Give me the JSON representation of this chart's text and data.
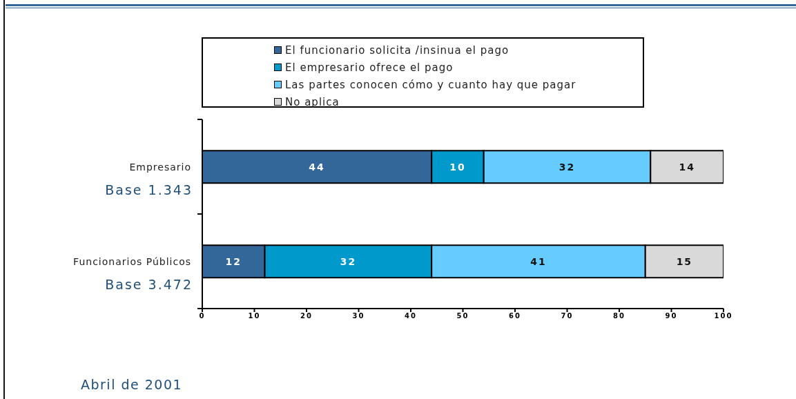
{
  "chart_data": {
    "type": "bar",
    "orientation": "horizontal",
    "stacked": true,
    "categories": [
      "Empresario",
      "Funcionarios Públicos"
    ],
    "series": [
      {
        "name": "El funcionario solicita /insinua el pago",
        "color": "#336699",
        "values": [
          44,
          12
        ]
      },
      {
        "name": "El empresario ofrece el pago",
        "color": "#0099cc",
        "values": [
          10,
          32
        ]
      },
      {
        "name": "Las partes conocen cómo y cuanto hay que pagar",
        "color": "#66ccff",
        "values": [
          32,
          41
        ]
      },
      {
        "name": "No aplica",
        "color": "#d9d9d9",
        "values": [
          14,
          15
        ]
      }
    ],
    "xlim": [
      0,
      100
    ],
    "xticks": [
      0,
      10,
      20,
      30,
      40,
      50,
      60,
      70,
      80,
      90,
      100
    ],
    "data_labels": true,
    "legend": "top",
    "annotations": [
      "Base 1.343",
      "Base 3.472",
      "Abril de 2001"
    ]
  }
}
